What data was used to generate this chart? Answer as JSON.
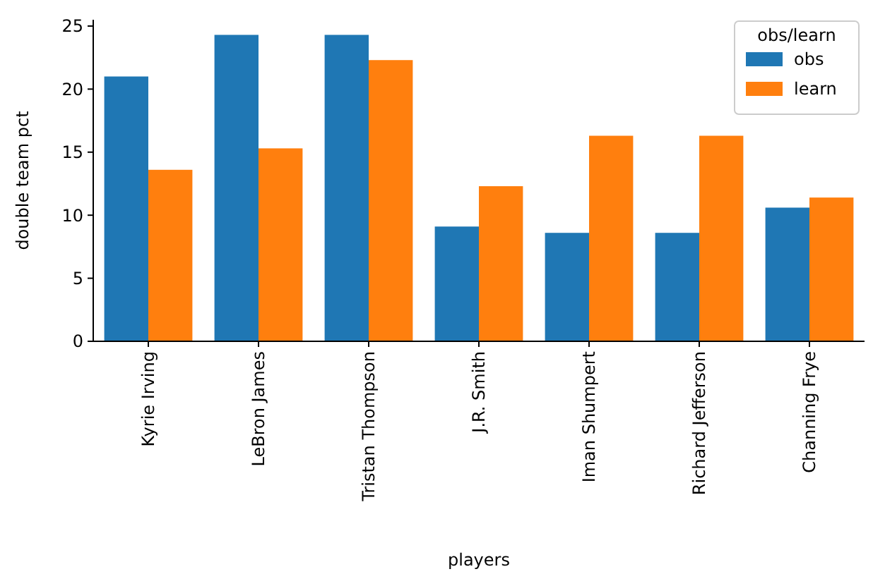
{
  "chart_data": {
    "type": "bar",
    "xlabel": "players",
    "ylabel": "double team pct",
    "legend_title": "obs/learn",
    "legend": "top right",
    "categories": [
      "Kyrie Irving",
      "LeBron James",
      "Tristan Thompson",
      "J.R. Smith",
      "Iman Shumpert",
      "Richard Jefferson",
      "Channing Frye"
    ],
    "series": [
      {
        "name": "obs",
        "color": "#1f77b4",
        "values": [
          21.0,
          24.3,
          24.3,
          9.1,
          8.6,
          8.6,
          10.6
        ]
      },
      {
        "name": "learn",
        "color": "#ff7f0e",
        "values": [
          13.6,
          15.3,
          22.3,
          12.3,
          16.3,
          16.3,
          11.4
        ]
      }
    ],
    "ylim": [
      0,
      25.5
    ],
    "yticks": [
      0,
      5,
      10,
      15,
      20,
      25
    ],
    "grid": false
  }
}
